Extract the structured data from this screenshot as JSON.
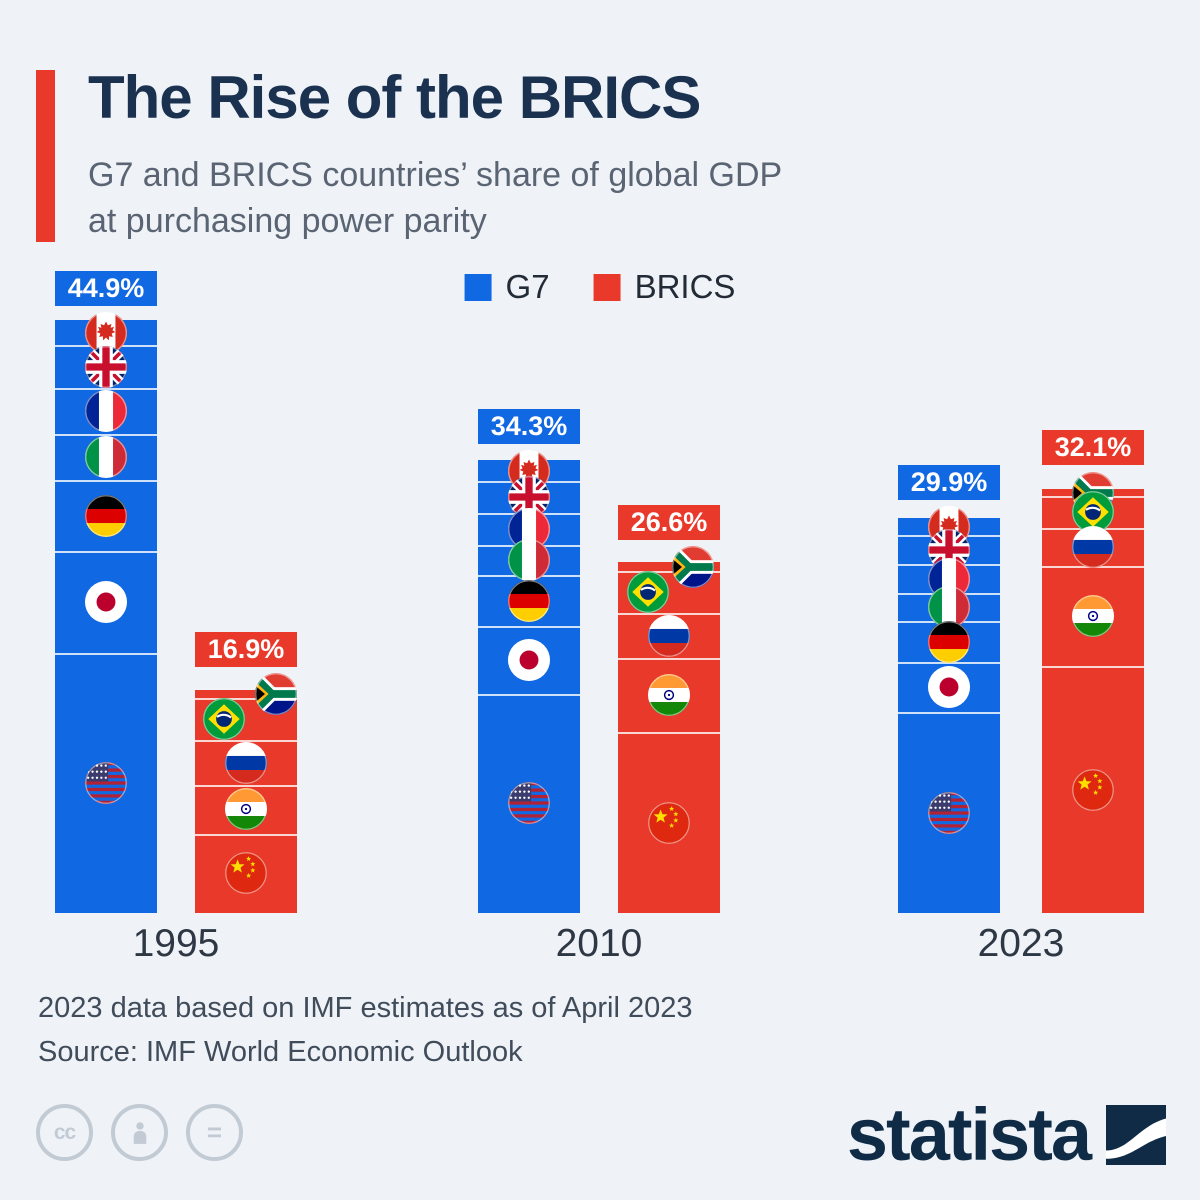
{
  "header": {
    "title": "The Rise of the BRICS",
    "subtitle_lines": [
      "G7 and BRICS countries’ share of global GDP",
      "at purchasing power parity"
    ]
  },
  "legend": {
    "items": [
      {
        "label": "G7",
        "color": "#1068E2"
      },
      {
        "label": "BRICS",
        "color": "#E8392A"
      }
    ]
  },
  "chart_data": {
    "type": "bar",
    "subtype": "grouped-stacked-share",
    "title": "The Rise of the BRICS",
    "ylabel": "Share of global GDP at purchasing power parity (%)",
    "categories": [
      "1995",
      "2010",
      "2023"
    ],
    "series": [
      {
        "name": "G7",
        "color": "#1068E2",
        "totals": [
          44.9,
          34.3,
          29.9
        ]
      },
      {
        "name": "BRICS",
        "color": "#E8392A",
        "totals": [
          16.9,
          26.6,
          32.1
        ]
      }
    ],
    "legend_position": "top-center",
    "grid": false,
    "groups": [
      {
        "year": "1995",
        "bars": [
          {
            "series": "G7",
            "label": "44.9%",
            "total": 44.9,
            "color": "#1068E2",
            "segments": [
              {
                "country": "Canada",
                "flag": "ca",
                "value_est": 1.9
              },
              {
                "country": "United Kingdom",
                "flag": "gb",
                "value_est": 3.2
              },
              {
                "country": "France",
                "flag": "fr",
                "value_est": 3.5
              },
              {
                "country": "Italy",
                "flag": "it",
                "value_est": 3.5
              },
              {
                "country": "Germany",
                "flag": "de",
                "value_est": 5.4
              },
              {
                "country": "Japan",
                "flag": "jp",
                "value_est": 7.7
              },
              {
                "country": "United States",
                "flag": "us",
                "value_est": 19.7
              }
            ]
          },
          {
            "series": "BRICS",
            "label": "16.9%",
            "total": 16.9,
            "color": "#E8392A",
            "segments": [
              {
                "country": "South Africa",
                "flag": "za",
                "value_est": 0.6,
                "dx": 30
              },
              {
                "country": "Brazil",
                "flag": "br",
                "value_est": 3.2,
                "dx": -22
              },
              {
                "country": "Russia",
                "flag": "ru",
                "value_est": 3.4
              },
              {
                "country": "India",
                "flag": "in",
                "value_est": 3.7
              },
              {
                "country": "China",
                "flag": "cn",
                "value_est": 6.0
              }
            ]
          }
        ]
      },
      {
        "year": "2010",
        "bars": [
          {
            "series": "G7",
            "label": "34.3%",
            "total": 34.3,
            "color": "#1068E2",
            "segments": [
              {
                "country": "Canada",
                "flag": "ca",
                "value_est": 1.6
              },
              {
                "country": "United Kingdom",
                "flag": "gb",
                "value_est": 2.4
              },
              {
                "country": "France",
                "flag": "fr",
                "value_est": 2.4
              },
              {
                "country": "Italy",
                "flag": "it",
                "value_est": 2.3
              },
              {
                "country": "Germany",
                "flag": "de",
                "value_est": 3.9
              },
              {
                "country": "Japan",
                "flag": "jp",
                "value_est": 5.1
              },
              {
                "country": "United States",
                "flag": "us",
                "value_est": 16.6
              }
            ]
          },
          {
            "series": "BRICS",
            "label": "26.6%",
            "total": 26.6,
            "color": "#E8392A",
            "segments": [
              {
                "country": "South Africa",
                "flag": "za",
                "value_est": 0.7,
                "dx": 24
              },
              {
                "country": "Brazil",
                "flag": "br",
                "value_est": 3.2,
                "dx": -21
              },
              {
                "country": "Russia",
                "flag": "ru",
                "value_est": 3.4
              },
              {
                "country": "India",
                "flag": "in",
                "value_est": 5.6
              },
              {
                "country": "China",
                "flag": "cn",
                "value_est": 13.7
              }
            ]
          }
        ]
      },
      {
        "year": "2023",
        "bars": [
          {
            "series": "G7",
            "label": "29.9%",
            "total": 29.9,
            "color": "#1068E2",
            "segments": [
              {
                "country": "Canada",
                "flag": "ca",
                "value_est": 1.3
              },
              {
                "country": "United Kingdom",
                "flag": "gb",
                "value_est": 2.2
              },
              {
                "country": "France",
                "flag": "fr",
                "value_est": 2.2
              },
              {
                "country": "Italy",
                "flag": "it",
                "value_est": 2.1
              },
              {
                "country": "Germany",
                "flag": "de",
                "value_est": 3.1
              },
              {
                "country": "Japan",
                "flag": "jp",
                "value_est": 3.8
              },
              {
                "country": "United States",
                "flag": "us",
                "value_est": 15.2
              }
            ]
          },
          {
            "series": "BRICS",
            "label": "32.1%",
            "total": 32.1,
            "color": "#E8392A",
            "segments": [
              {
                "country": "South Africa",
                "flag": "za",
                "value_est": 0.5
              },
              {
                "country": "Brazil",
                "flag": "br",
                "value_est": 2.4
              },
              {
                "country": "Russia",
                "flag": "ru",
                "value_est": 2.9
              },
              {
                "country": "India",
                "flag": "in",
                "value_est": 7.6
              },
              {
                "country": "China",
                "flag": "cn",
                "value_est": 18.7
              }
            ]
          }
        ]
      }
    ]
  },
  "footer": {
    "note": "2023 data based on IMF estimates as of April 2023",
    "source": "Source: IMF World Economic Outlook"
  },
  "branding": {
    "wordmark": "statista",
    "license_icons": [
      "cc",
      "by",
      "nd"
    ]
  }
}
